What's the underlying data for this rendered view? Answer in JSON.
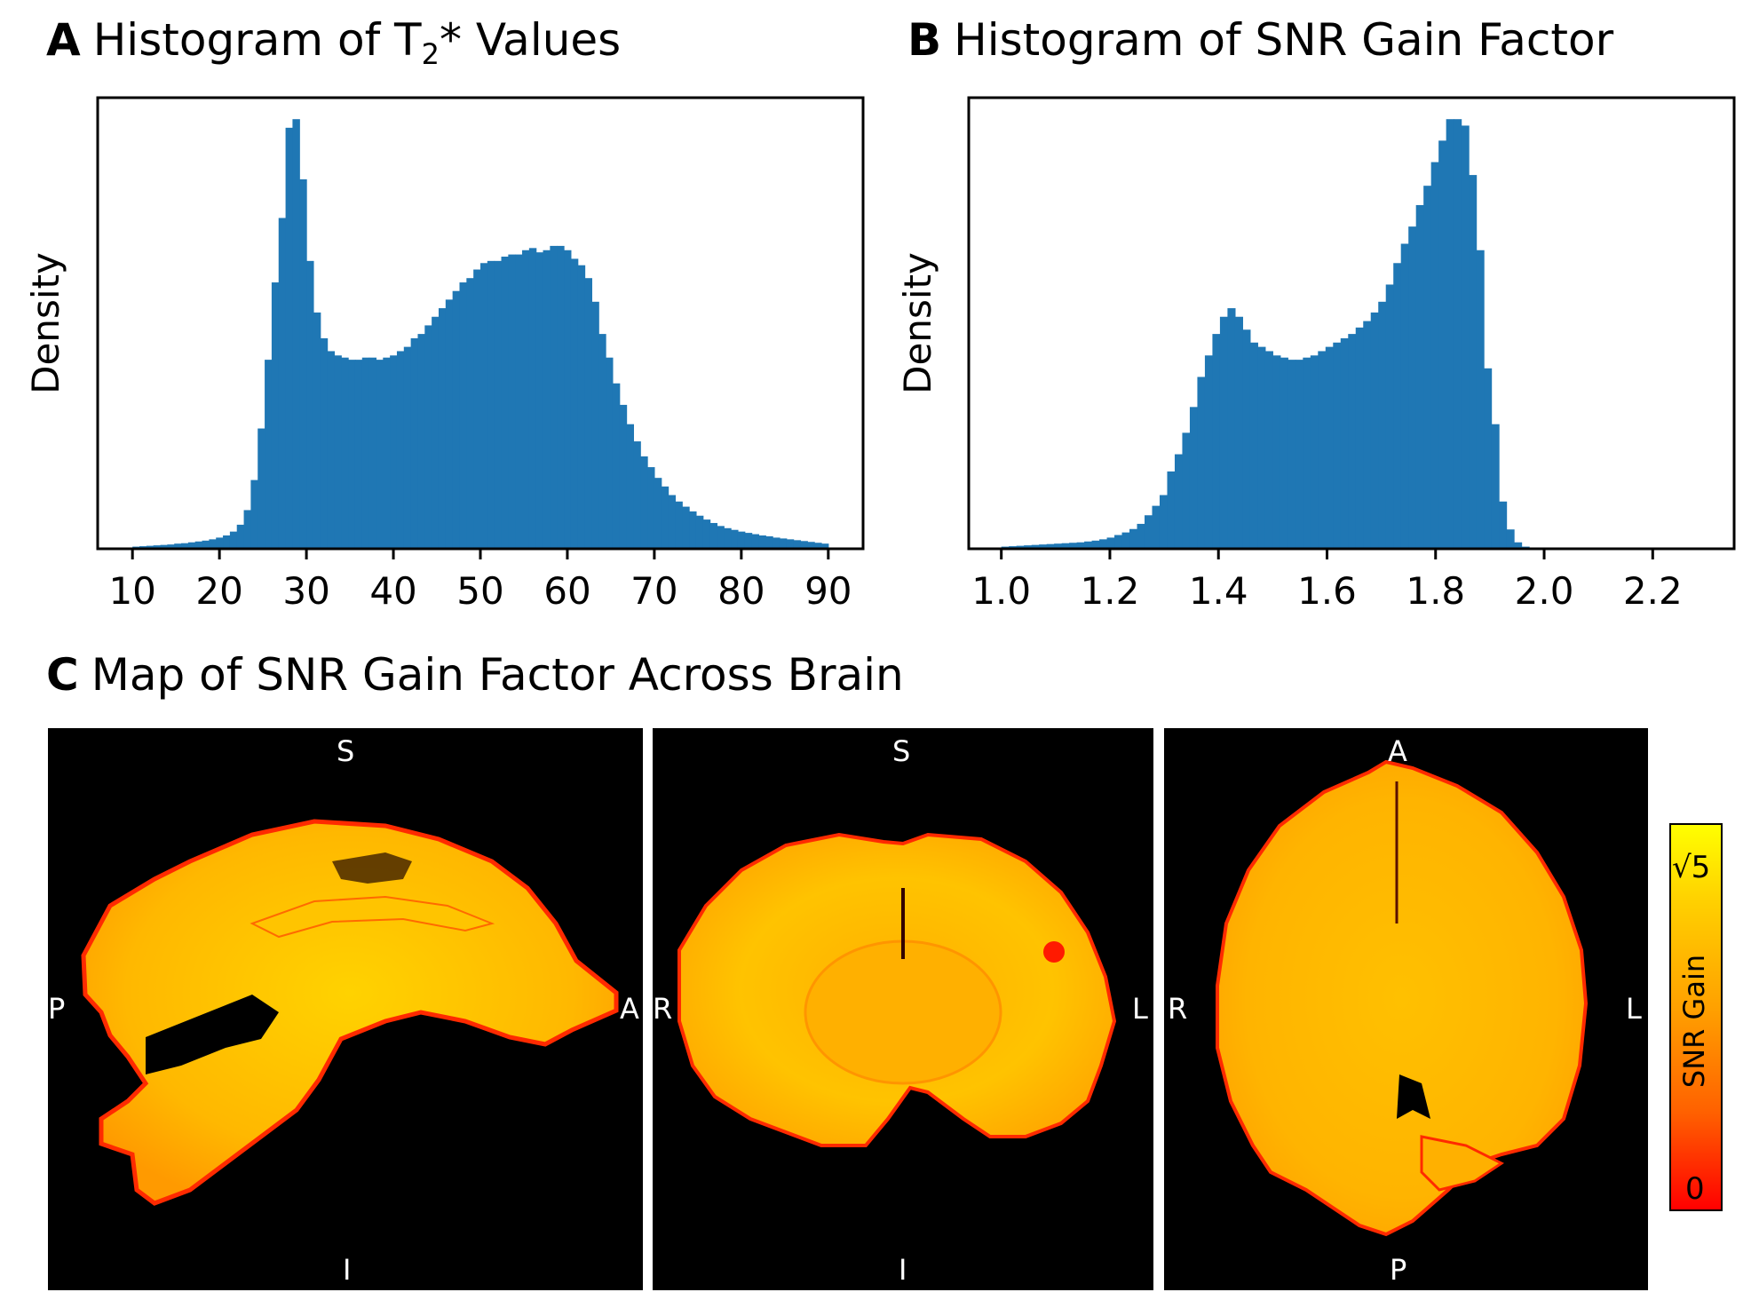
{
  "panels": {
    "A": {
      "letter": "A",
      "title_pre": "Histogram of T",
      "title_sub": "2",
      "title_post": "* Values"
    },
    "B": {
      "letter": "B",
      "title": "Histogram of SNR Gain Factor"
    },
    "C": {
      "letter": "C",
      "title": "Map of SNR Gain Factor Across Brain"
    }
  },
  "chart_data": [
    {
      "id": "A",
      "type": "bar",
      "title": "Histogram of T2* Values",
      "xlabel": "",
      "ylabel": "Density",
      "xlim": [
        6,
        94
      ],
      "ylim": [
        0,
        1.05
      ],
      "xticks": [
        10,
        20,
        30,
        40,
        50,
        60,
        70,
        80,
        90
      ],
      "xtick_labels": [
        "10",
        "20",
        "30",
        "40",
        "50",
        "60",
        "70",
        "80",
        "90"
      ],
      "bin_edges_range": [
        10,
        90
      ],
      "values": [
        0.005,
        0.006,
        0.007,
        0.008,
        0.009,
        0.01,
        0.012,
        0.013,
        0.015,
        0.017,
        0.019,
        0.022,
        0.026,
        0.031,
        0.04,
        0.056,
        0.09,
        0.16,
        0.28,
        0.44,
        0.62,
        0.77,
        0.98,
        1.0,
        0.86,
        0.67,
        0.55,
        0.49,
        0.46,
        0.45,
        0.445,
        0.44,
        0.44,
        0.445,
        0.445,
        0.44,
        0.445,
        0.45,
        0.46,
        0.47,
        0.49,
        0.5,
        0.52,
        0.54,
        0.56,
        0.58,
        0.6,
        0.62,
        0.63,
        0.65,
        0.665,
        0.67,
        0.67,
        0.68,
        0.685,
        0.685,
        0.695,
        0.7,
        0.69,
        0.695,
        0.705,
        0.705,
        0.695,
        0.675,
        0.66,
        0.63,
        0.575,
        0.5,
        0.445,
        0.385,
        0.335,
        0.29,
        0.25,
        0.215,
        0.19,
        0.165,
        0.145,
        0.125,
        0.11,
        0.098,
        0.087,
        0.077,
        0.068,
        0.06,
        0.053,
        0.048,
        0.044,
        0.04,
        0.037,
        0.034,
        0.031,
        0.029,
        0.026,
        0.024,
        0.022,
        0.02,
        0.018,
        0.016,
        0.014,
        0.012
      ]
    },
    {
      "id": "B",
      "type": "bar",
      "title": "Histogram of SNR Gain Factor",
      "xlabel": "",
      "ylabel": "Density",
      "xlim": [
        0.94,
        2.35
      ],
      "ylim": [
        0,
        1.05
      ],
      "xticks": [
        1.0,
        1.2,
        1.4,
        1.6,
        1.8,
        2.0,
        2.2
      ],
      "xtick_labels": [
        "1.0",
        "1.2",
        "1.4",
        "1.6",
        "1.8",
        "2.0",
        "2.2"
      ],
      "bin_edges_range": [
        1.0,
        2.0
      ],
      "values": [
        0.005,
        0.006,
        0.007,
        0.008,
        0.009,
        0.01,
        0.011,
        0.012,
        0.013,
        0.014,
        0.015,
        0.017,
        0.019,
        0.022,
        0.026,
        0.032,
        0.038,
        0.046,
        0.058,
        0.078,
        0.1,
        0.125,
        0.18,
        0.22,
        0.27,
        0.33,
        0.4,
        0.45,
        0.5,
        0.54,
        0.56,
        0.54,
        0.51,
        0.48,
        0.47,
        0.46,
        0.45,
        0.445,
        0.44,
        0.44,
        0.445,
        0.45,
        0.46,
        0.47,
        0.48,
        0.49,
        0.5,
        0.515,
        0.53,
        0.55,
        0.575,
        0.615,
        0.665,
        0.71,
        0.75,
        0.8,
        0.845,
        0.9,
        0.95,
        1.0,
        1.0,
        0.985,
        0.87,
        0.695,
        0.42,
        0.29,
        0.11,
        0.045,
        0.015,
        0.005,
        0.002,
        0.001
      ]
    }
  ],
  "brain_map": {
    "views": [
      {
        "name": "sagittal",
        "top": "S",
        "bottom": "I",
        "left": "P",
        "right": "A"
      },
      {
        "name": "coronal",
        "top": "S",
        "bottom": "I",
        "left": "R",
        "right": "L"
      },
      {
        "name": "axial",
        "top": "A",
        "bottom": "P",
        "left": "R",
        "right": "L"
      }
    ],
    "colorbar": {
      "max_label": "√5",
      "min_label": "0",
      "label": "SNR Gain"
    },
    "colors": {
      "background": "#000000",
      "tissue": "#ffb300",
      "tissue_bright": "#ffd200",
      "edge": "#ff2a00"
    }
  },
  "colors": {
    "bar": "#1f77b4"
  }
}
